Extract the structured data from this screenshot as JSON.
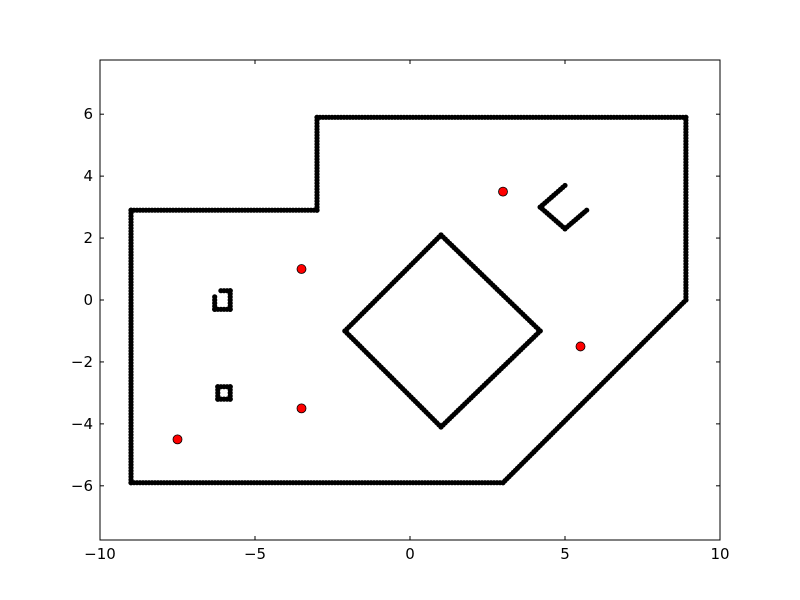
{
  "chart_data": {
    "type": "scatter",
    "title": "",
    "xlabel": "",
    "ylabel": "",
    "xlim": [
      -10,
      10
    ],
    "ylim": [
      -7.75,
      7.75
    ],
    "grid": false,
    "xticks": [
      -10,
      -5,
      0,
      5,
      10
    ],
    "yticks": [
      -6,
      -4,
      -2,
      0,
      2,
      4,
      6
    ],
    "xtick_labels": [
      "−10",
      "−5",
      "0",
      "5",
      "10"
    ],
    "ytick_labels": [
      "−6",
      "−4",
      "−2",
      "0",
      "2",
      "4",
      "6"
    ],
    "series": [
      {
        "role": "walls",
        "color": "#000000",
        "marker": "dot",
        "paths": [
          [
            [
              -9,
              -5.9
            ],
            [
              -9,
              2.9
            ],
            [
              -3,
              2.9
            ],
            [
              -3,
              5.9
            ],
            [
              8.9,
              5.9
            ],
            [
              8.9,
              0
            ],
            [
              4,
              -4.9
            ],
            [
              3,
              -5.9
            ],
            [
              -9,
              -5.9
            ]
          ],
          [
            [
              1,
              2.1
            ],
            [
              4.2,
              -1
            ],
            [
              1,
              -4.1
            ],
            [
              -2.1,
              -1
            ],
            [
              1,
              2.1
            ]
          ],
          [
            [
              5,
              3.7
            ],
            [
              4.2,
              3
            ],
            [
              5,
              2.3
            ],
            [
              5.7,
              2.9
            ]
          ],
          [
            [
              -6.3,
              0.1
            ],
            [
              -6.3,
              -0.3
            ],
            [
              -5.8,
              -0.3
            ],
            [
              -5.8,
              0.3
            ],
            [
              -6.1,
              0.3
            ]
          ],
          [
            [
              -6.2,
              -2.8
            ],
            [
              -5.8,
              -2.8
            ],
            [
              -5.8,
              -3.2
            ],
            [
              -6.2,
              -3.2
            ],
            [
              -6.2,
              -2.8
            ]
          ]
        ]
      },
      {
        "role": "points",
        "color": "#ff0000",
        "marker": "circle",
        "x": [
          -7.5,
          -3.5,
          -3.5,
          3,
          5.5
        ],
        "y": [
          -4.5,
          1,
          -3.5,
          3.5,
          -1.5
        ]
      }
    ]
  }
}
